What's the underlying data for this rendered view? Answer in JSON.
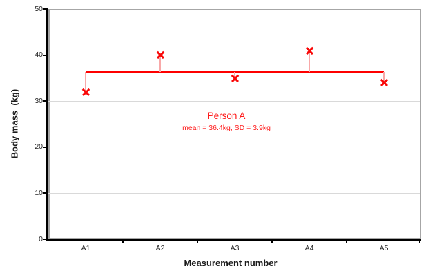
{
  "chart_data": {
    "type": "scatter",
    "categories": [
      "A1",
      "A2",
      "A3",
      "A4",
      "A5"
    ],
    "values": [
      32,
      40,
      35,
      41,
      34
    ],
    "series": [
      {
        "name": "Person A",
        "values": [
          32,
          40,
          35,
          41,
          34
        ]
      }
    ],
    "mean": 36.4,
    "sd": 3.9,
    "mean_line": {
      "value": 36.4,
      "from_category": "A1",
      "to_category": "A5"
    },
    "annotation": {
      "title": "Person A",
      "subtitle": "mean = 36.4kg, SD = 3.9kg"
    },
    "xlabel": "Measurement number",
    "ylabel": "Body mass  (kg)",
    "ylim": [
      0,
      50
    ],
    "yticks": [
      0,
      10,
      20,
      30,
      40,
      50
    ],
    "grid": "horizontal",
    "legend_position": "none",
    "marker": "x",
    "colors": {
      "series_red": "#f90808",
      "mean_line_red": "#fe0000",
      "connector_pink": "#f8a8a8",
      "annotation_red": "#ff1a1a",
      "gridline_gray": "#d9d9d9",
      "plot_border_gray": "#a6a6a6",
      "axis_black": "#000000",
      "tick_label_gray": "#262626"
    }
  }
}
